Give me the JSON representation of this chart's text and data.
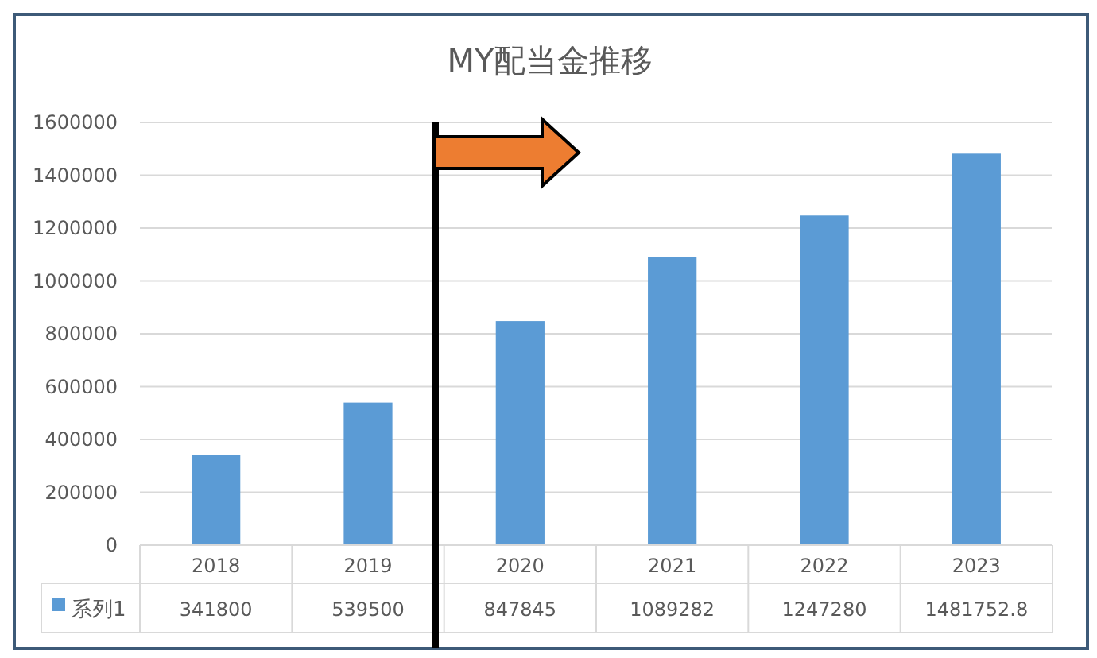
{
  "chart_data": {
    "type": "bar",
    "title": "MY配当金推移",
    "categories": [
      "2018",
      "2019",
      "2020",
      "2021",
      "2022",
      "2023"
    ],
    "series": [
      {
        "name": "系列1",
        "color": "#5b9bd5",
        "values": [
          341800,
          539500,
          847845,
          1089282,
          1247280,
          1481752.8
        ]
      }
    ],
    "ylim": [
      0,
      1600000
    ],
    "yticks": [
      0,
      200000,
      400000,
      600000,
      800000,
      1000000,
      1200000,
      1400000,
      1600000
    ],
    "grid": "y",
    "data_labels": true,
    "legend": "bottom"
  }
}
